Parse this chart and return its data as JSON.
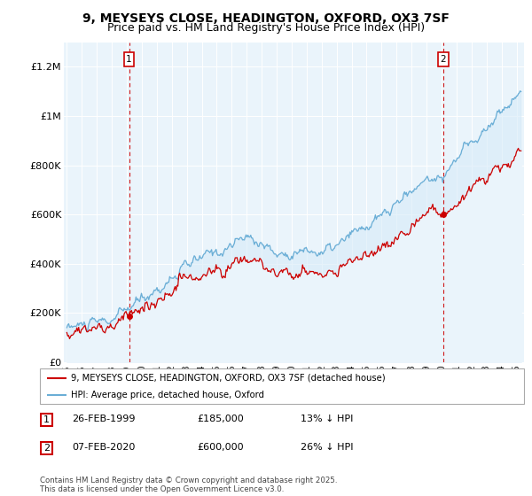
{
  "title_line1": "9, MEYSEYS CLOSE, HEADINGTON, OXFORD, OX3 7SF",
  "title_line2": "Price paid vs. HM Land Registry's House Price Index (HPI)",
  "title_fontsize": 10,
  "subtitle_fontsize": 9,
  "ylabel_ticks": [
    "£0",
    "£200K",
    "£400K",
    "£600K",
    "£800K",
    "£1M",
    "£1.2M"
  ],
  "ytick_values": [
    0,
    200000,
    400000,
    600000,
    800000,
    1000000,
    1200000
  ],
  "ylim": [
    0,
    1300000
  ],
  "xlim_start": 1994.8,
  "xlim_end": 2025.5,
  "hpi_color": "#6aaed6",
  "hpi_fill_color": "#d6eaf8",
  "price_color": "#cc0000",
  "vline_color": "#cc0000",
  "transaction1_year": 1999.15,
  "transaction1_price": 185000,
  "transaction1_label": "1",
  "transaction2_year": 2020.1,
  "transaction2_price": 600000,
  "transaction2_label": "2",
  "legend_house_label": "9, MEYSEYS CLOSE, HEADINGTON, OXFORD, OX3 7SF (detached house)",
  "legend_hpi_label": "HPI: Average price, detached house, Oxford",
  "table_row1": [
    "1",
    "26-FEB-1999",
    "£185,000",
    "13% ↓ HPI"
  ],
  "table_row2": [
    "2",
    "07-FEB-2020",
    "£600,000",
    "26% ↓ HPI"
  ],
  "copyright_text": "Contains HM Land Registry data © Crown copyright and database right 2025.\nThis data is licensed under the Open Government Licence v3.0.",
  "background_color": "#ffffff",
  "chart_bg_color": "#eaf4fb",
  "grid_color": "#ffffff"
}
